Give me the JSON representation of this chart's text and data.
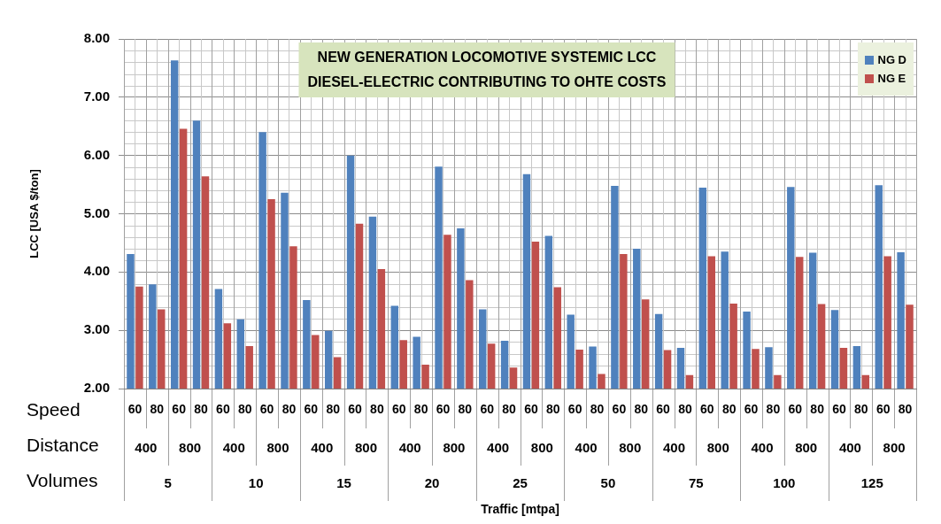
{
  "chart_data": {
    "type": "bar",
    "title": "NEW GENERATION LOCOMOTIVE SYSTEMIC LCC",
    "subtitle": "DIESEL-ELECTRIC CONTRIBUTING TO OHTE COSTS",
    "ylabel": "LCC [USA $/ton]",
    "categories": [
      "60",
      "80",
      "60",
      "80",
      "60",
      "80",
      "60",
      "80",
      "60",
      "80",
      "60",
      "80",
      "60",
      "80",
      "60",
      "80",
      "60",
      "80",
      "60",
      "80",
      "60",
      "80",
      "60",
      "80",
      "60",
      "80",
      "60",
      "80",
      "60",
      "80",
      "60",
      "80",
      "60",
      "80",
      "60",
      "80"
    ],
    "series": [
      {
        "name": "NG D",
        "color": "#4f81bd",
        "values": [
          4.31,
          3.79,
          7.63,
          6.6,
          3.71,
          3.19,
          6.4,
          5.36,
          3.52,
          2.99,
          6.0,
          4.95,
          3.42,
          2.89,
          5.81,
          4.75,
          3.36,
          2.82,
          5.68,
          4.62,
          3.27,
          2.72,
          5.48,
          4.4,
          3.28,
          2.7,
          5.45,
          4.35,
          3.32,
          2.71,
          5.46,
          4.33,
          3.35,
          2.73,
          5.49,
          4.34
        ]
      },
      {
        "name": "NG E",
        "color": "#c0504d",
        "values": [
          3.75,
          3.36,
          6.46,
          5.64,
          3.12,
          2.73,
          5.25,
          4.44,
          2.92,
          2.54,
          4.83,
          4.05,
          2.83,
          2.41,
          4.64,
          3.86,
          2.77,
          2.36,
          4.52,
          3.74,
          2.67,
          2.25,
          4.31,
          3.53,
          2.66,
          2.23,
          4.27,
          3.46,
          2.68,
          2.23,
          4.26,
          3.45,
          2.7,
          2.23,
          4.27,
          3.44
        ]
      }
    ],
    "annotations": [
      "Speed",
      "Distance",
      "Volumes",
      "400",
      "800",
      "400",
      "800",
      "400",
      "800",
      "400",
      "800",
      "400",
      "800",
      "400",
      "800",
      "400",
      "800",
      "400",
      "800",
      "400",
      "800",
      "5",
      "10",
      "15",
      "20",
      "25",
      "50",
      "75",
      "100",
      "125",
      "Traffic [mtpa]"
    ],
    "ylim": [
      2,
      8
    ],
    "yticks": [
      {
        "value": 2,
        "label": "2.00"
      },
      {
        "value": 3,
        "label": "3.00"
      },
      {
        "value": 4,
        "label": "4.00"
      },
      {
        "value": 5,
        "label": "5.00"
      },
      {
        "value": 6,
        "label": "6.00"
      },
      {
        "value": 7,
        "label": "7.00"
      },
      {
        "value": 8,
        "label": "8.00"
      }
    ],
    "grid": true,
    "legend": "top right"
  }
}
